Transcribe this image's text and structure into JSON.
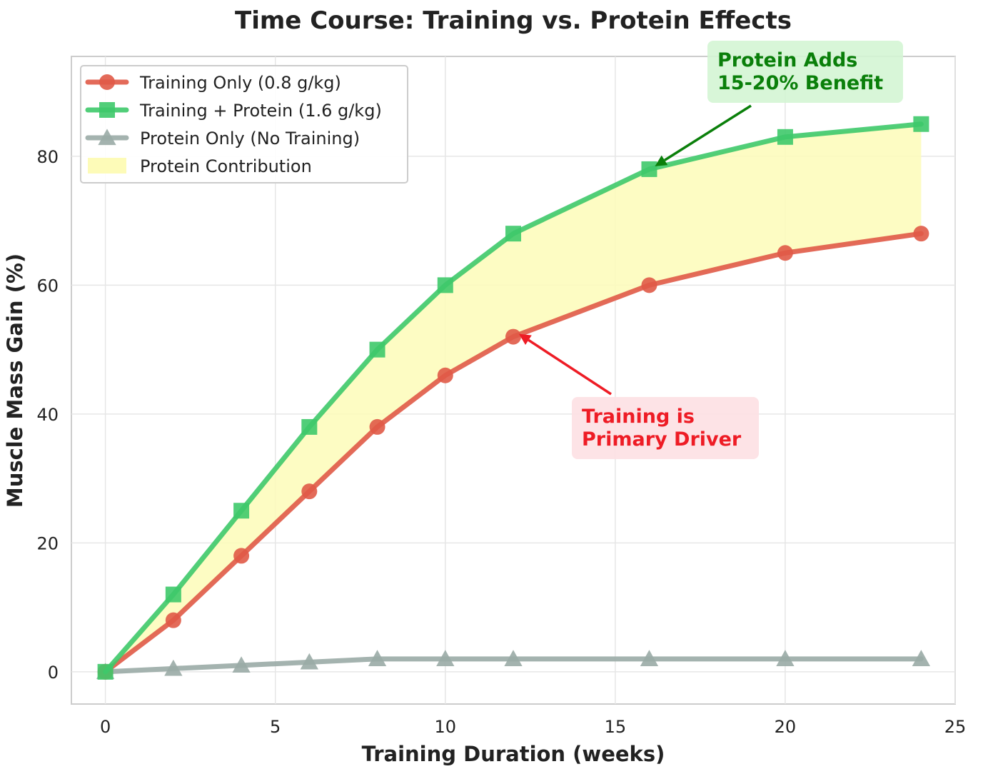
{
  "chart_data": {
    "type": "line",
    "title": "Time Course: Training vs. Protein Effects",
    "xlabel": "Training Duration (weeks)",
    "ylabel": "Muscle Mass Gain (%)",
    "xlim": [
      -1,
      25
    ],
    "ylim": [
      -5,
      95.5
    ],
    "xticks": [
      0,
      5,
      10,
      15,
      20,
      25
    ],
    "yticks": [
      0,
      20,
      40,
      60,
      80
    ],
    "grid": true,
    "legend_position": "top-left",
    "x": [
      0,
      2,
      4,
      6,
      8,
      10,
      12,
      16,
      20,
      24
    ],
    "series": [
      {
        "name": "Training Only (0.8 g/kg)",
        "color": "#e05a47",
        "marker": "circle",
        "values": [
          0,
          8,
          18,
          28,
          38,
          46,
          52,
          60,
          65,
          68
        ]
      },
      {
        "name": "Training + Protein (1.6 g/kg)",
        "color": "#3ec96a",
        "marker": "square",
        "values": [
          0,
          12,
          25,
          38,
          50,
          60,
          68,
          78,
          83,
          85
        ]
      },
      {
        "name": "Protein Only (No Training)",
        "color": "#9aaba6",
        "marker": "triangle",
        "values": [
          0,
          0.5,
          1,
          1.5,
          2,
          2,
          2,
          2,
          2,
          2
        ]
      }
    ],
    "fill": {
      "name": "Protein Contribution",
      "color": "#fdfbb8",
      "between": [
        "Training Only (0.8 g/kg)",
        "Training + Protein (1.6 g/kg)"
      ]
    },
    "annotations": [
      {
        "lines": [
          "Protein Adds",
          "15-20% Benefit"
        ],
        "color": "#0a7f0a",
        "box_color": "#d4f5d4",
        "point": [
          16,
          78
        ]
      },
      {
        "lines": [
          "Training is",
          "Primary Driver"
        ],
        "color": "#ee1c25",
        "box_color": "#fde0e3",
        "point": [
          12,
          52
        ]
      }
    ]
  }
}
